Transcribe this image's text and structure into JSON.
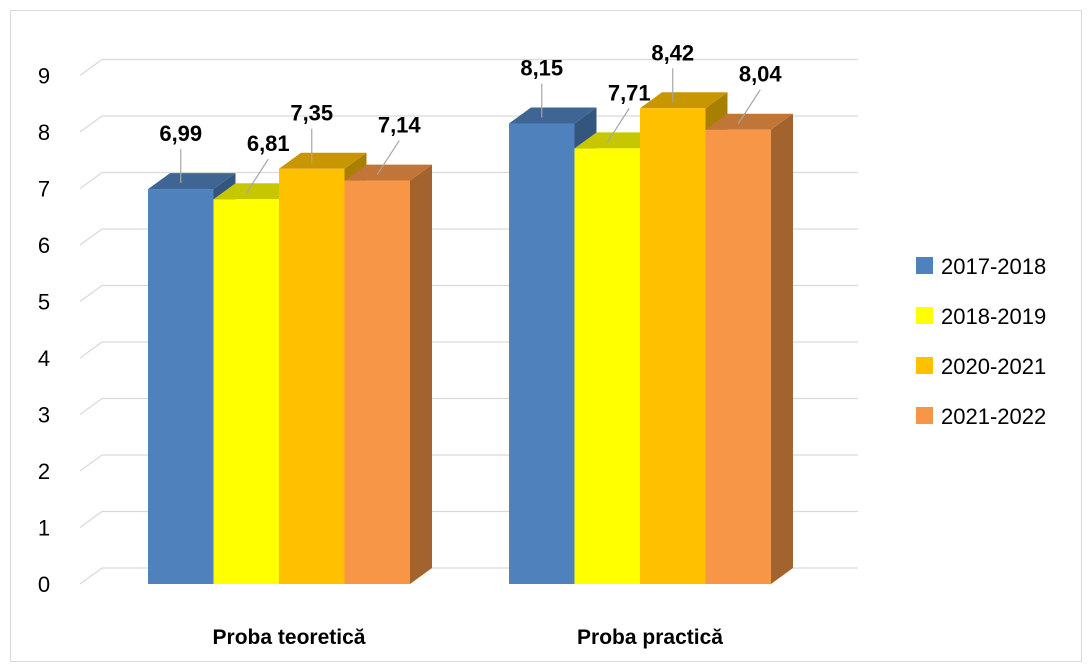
{
  "chart_data": {
    "type": "bar",
    "categories": [
      "Proba teoretică",
      "Proba practică"
    ],
    "series": [
      {
        "name": "2017-2018",
        "values": [
          6.99,
          8.15
        ],
        "labels": [
          "6,99",
          "8,15"
        ],
        "color": "#4F81BD"
      },
      {
        "name": "2018-2019",
        "values": [
          6.81,
          7.71
        ],
        "labels": [
          "6,81",
          "7,71"
        ],
        "color": "#FFFF00"
      },
      {
        "name": "2020-2021",
        "values": [
          7.35,
          8.42
        ],
        "labels": [
          "7,35",
          "8,42"
        ],
        "color": "#FFC000"
      },
      {
        "name": "2021-2022",
        "values": [
          7.14,
          8.04
        ],
        "labels": [
          "7,14",
          "8,04"
        ],
        "color": "#F79646"
      }
    ],
    "yticks": [
      "0",
      "1",
      "2",
      "3",
      "4",
      "5",
      "6",
      "7",
      "8",
      "9"
    ],
    "ylim": [
      0,
      9
    ],
    "grid": true,
    "legend": "right",
    "style": "3d-clustered-column"
  }
}
